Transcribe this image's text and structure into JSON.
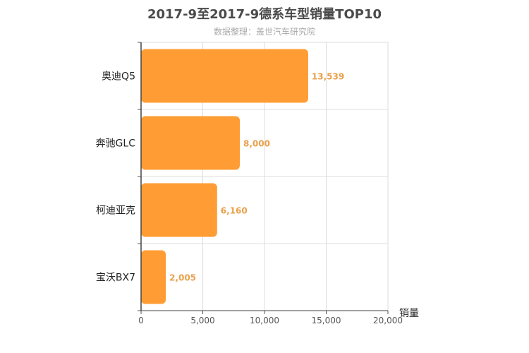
{
  "chart_data": {
    "type": "bar",
    "orientation": "horizontal",
    "title": "2017-9至2017-9德系车型销量TOP10",
    "subtitle": "数据整理：盖世汽车研究院",
    "categories": [
      "奥迪Q5",
      "奔驰GLC",
      "柯迪亚克",
      "宝沃BX7"
    ],
    "values": [
      13539,
      8000,
      6160,
      2005
    ],
    "value_labels": [
      "13,539",
      "8,000",
      "6,160",
      "2,005"
    ],
    "xlabel": "销量",
    "xlim": [
      0,
      20000
    ],
    "xticks": [
      0,
      5000,
      10000,
      15000,
      20000
    ],
    "xtick_labels": [
      "0",
      "5,000",
      "10,000",
      "15,000",
      "20,000"
    ],
    "grid": true,
    "bar_color": "#ff9c33",
    "label_color": "#e8a04a"
  }
}
